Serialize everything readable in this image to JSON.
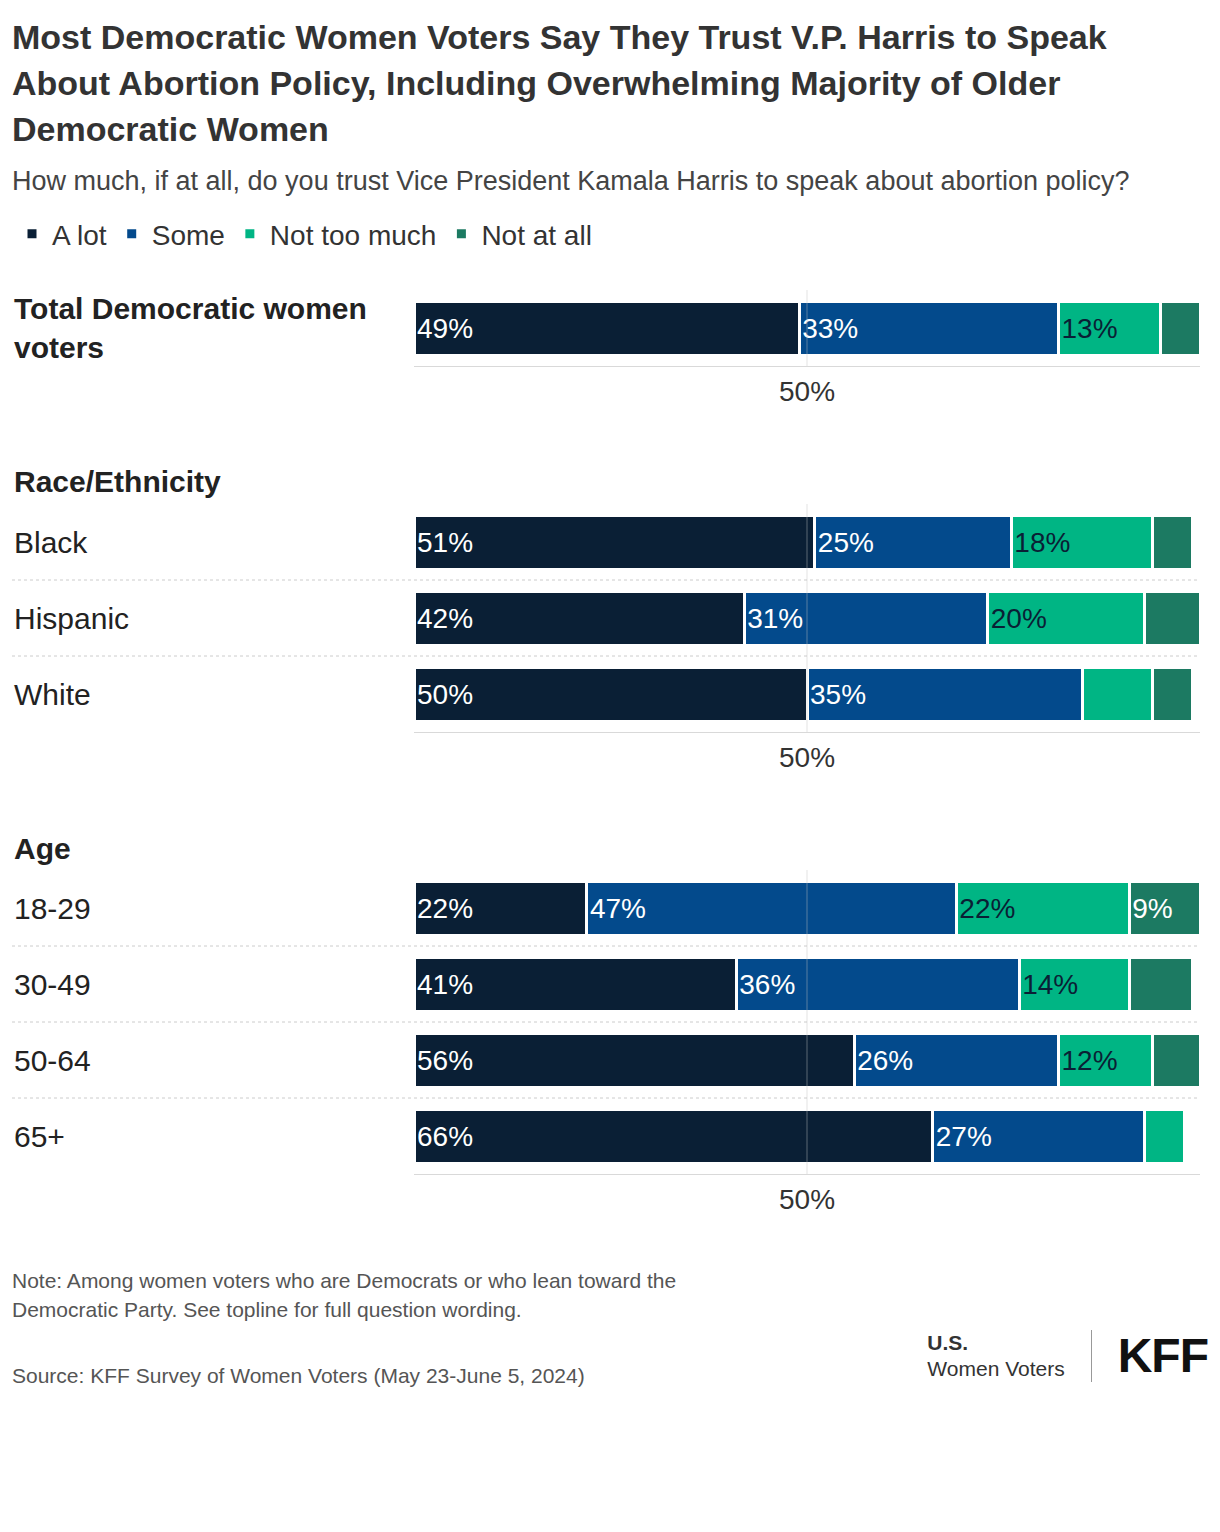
{
  "chart_data": {
    "type": "bar",
    "title": "Most Democratic Women Voters Say They Trust V.P. Harris to Speak About Abortion Policy, Including Overwhelming Majority of Older Democratic Women",
    "subtitle": "How much, if at all, do you trust Vice President Kamala Harris to speak about abortion policy?",
    "orientation": "horizontal",
    "stacked": true,
    "data_labels": true,
    "grid": true,
    "legend": "top-left",
    "tick_labels": "x",
    "xlim": [
      0,
      100
    ],
    "xticks": [
      {
        "value": 50,
        "label": "50%"
      }
    ],
    "series": [
      {
        "name": "A lot",
        "color": "#0a1f35"
      },
      {
        "name": "Some",
        "color": "#034a8c"
      },
      {
        "name": "Not too much",
        "color": "#00b584"
      },
      {
        "name": "Not at all",
        "color": "#1c7a62"
      }
    ],
    "panels": [
      {
        "categories": [
          "Total Democratic women voters"
        ],
        "series": [
          {
            "values": [
              49
            ],
            "value_labels": [
              "49%"
            ]
          },
          {
            "values": [
              33
            ],
            "value_labels": [
              "33%"
            ]
          },
          {
            "values": [
              13
            ],
            "value_labels": [
              "13%"
            ]
          },
          {
            "values": [
              5
            ],
            "value_labels": [
              null
            ]
          }
        ]
      },
      {
        "heading": "Race/Ethnicity",
        "categories": [
          "Black",
          "Hispanic",
          "White"
        ],
        "series": [
          {
            "values": [
              51,
              42,
              50
            ],
            "value_labels": [
              "51%",
              "42%",
              "50%"
            ]
          },
          {
            "values": [
              25,
              31,
              35
            ],
            "value_labels": [
              "25%",
              "31%",
              "35%"
            ]
          },
          {
            "values": [
              18,
              20,
              9
            ],
            "value_labels": [
              "18%",
              "20%",
              null
            ]
          },
          {
            "values": [
              5,
              7,
              5
            ],
            "value_labels": [
              null,
              null,
              null
            ]
          }
        ]
      },
      {
        "heading": "Age",
        "categories": [
          "18-29",
          "30-49",
          "50-64",
          "65+"
        ],
        "series": [
          {
            "values": [
              22,
              41,
              56,
              66
            ],
            "value_labels": [
              "22%",
              "41%",
              "56%",
              "66%"
            ]
          },
          {
            "values": [
              47,
              36,
              26,
              27
            ],
            "value_labels": [
              "47%",
              "36%",
              "26%",
              "27%"
            ]
          },
          {
            "values": [
              22,
              14,
              12,
              5
            ],
            "value_labels": [
              "22%",
              "14%",
              "12%",
              null
            ]
          },
          {
            "values": [
              9,
              8,
              6,
              0
            ],
            "value_labels": [
              "9%",
              null,
              null,
              null
            ]
          }
        ]
      }
    ],
    "note": "Note: Among women voters who are Democrats or who lean toward the Democratic Party. See topline for full question wording.",
    "source": "Source: KFF Survey of Women Voters (May 23-June 5, 2024)",
    "logo": {
      "line1": "U.S.",
      "line2": "Women Voters",
      "brand": "KFF"
    }
  }
}
